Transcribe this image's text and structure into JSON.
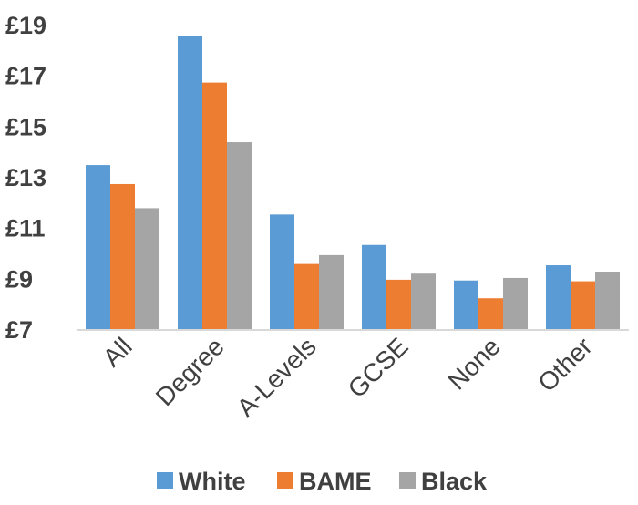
{
  "chart_data": {
    "type": "bar",
    "categories": [
      "All",
      "Degree",
      "A-Levels",
      "GCSE",
      "None",
      "Other"
    ],
    "series": [
      {
        "name": "White",
        "color": "#5B9BD5",
        "values": [
          13.5,
          18.6,
          11.55,
          10.35,
          8.95,
          9.55
        ]
      },
      {
        "name": "BAME",
        "color": "#ED7D31",
        "values": [
          12.75,
          16.75,
          9.6,
          8.98,
          8.25,
          8.92
        ]
      },
      {
        "name": "Black",
        "color": "#A5A5A5",
        "values": [
          11.8,
          14.4,
          9.95,
          9.22,
          9.05,
          9.3
        ]
      }
    ],
    "yticks": [
      "£19",
      "£17",
      "£15",
      "£13",
      "£11",
      "£9",
      "£7"
    ],
    "ytick_values": [
      19,
      17,
      15,
      13,
      11,
      9,
      7
    ],
    "ylim": [
      7,
      19
    ],
    "grid": false,
    "legend_position": "bottom"
  }
}
